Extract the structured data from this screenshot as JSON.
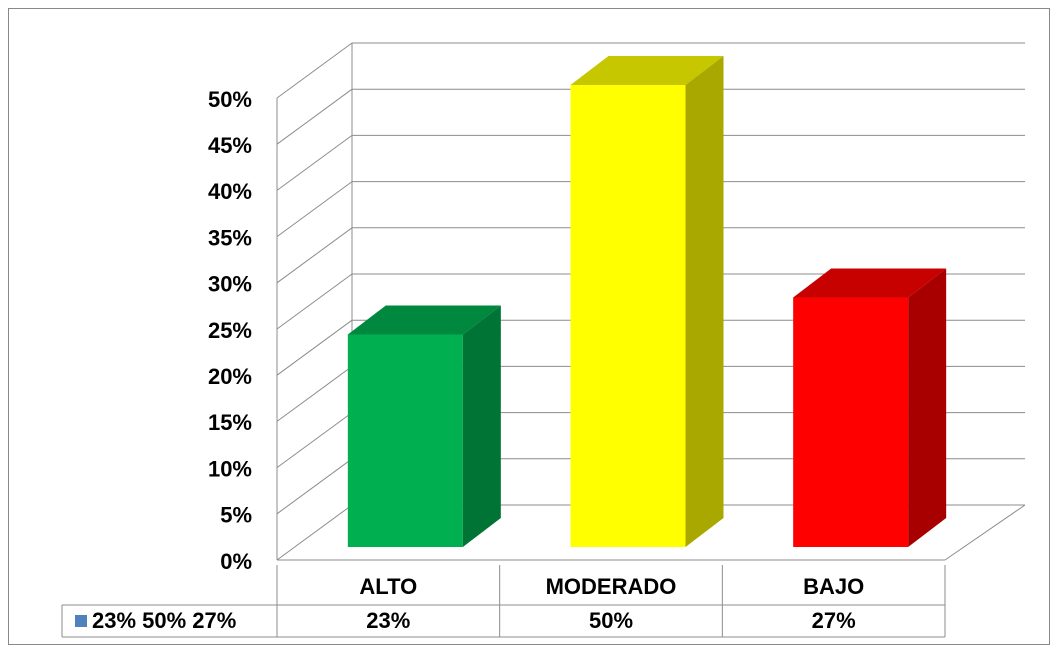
{
  "chart_data": {
    "type": "bar3d",
    "categories": [
      "ALTO",
      "MODERADO",
      "BAJO"
    ],
    "series": [
      {
        "name": "23% 50% 27%",
        "color": "#4f81bd",
        "values": [
          23,
          50,
          27
        ],
        "value_labels": [
          "23%",
          "50%",
          "27%"
        ]
      }
    ],
    "bar_colors": [
      "#00b050",
      "#ffff00",
      "#ff0000"
    ],
    "ylim": [
      0,
      50
    ],
    "yticks": [
      {
        "value": 0,
        "label": "0%"
      },
      {
        "value": 5,
        "label": "5%"
      },
      {
        "value": 10,
        "label": "10%"
      },
      {
        "value": 15,
        "label": "15%"
      },
      {
        "value": 20,
        "label": "20%"
      },
      {
        "value": 25,
        "label": "25%"
      },
      {
        "value": 30,
        "label": "30%"
      },
      {
        "value": 35,
        "label": "35%"
      },
      {
        "value": 40,
        "label": "40%"
      },
      {
        "value": 45,
        "label": "45%"
      },
      {
        "value": 50,
        "label": "50%"
      }
    ],
    "grid": true
  }
}
